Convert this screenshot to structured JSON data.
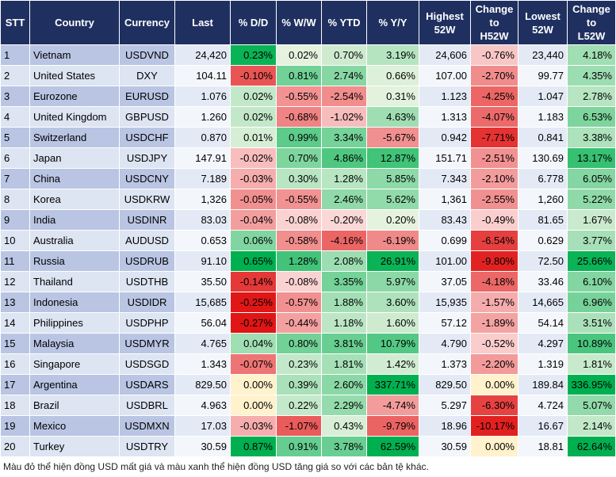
{
  "table": {
    "columns": [
      "STT",
      "Country",
      "Currency",
      "Last",
      "% D/D",
      "% W/W",
      "% YTD",
      "% Y/Y",
      "Highest\n52W",
      "Change\nto\nH52W",
      "Lowest\n52W",
      "Change\nto\nL52W"
    ],
    "rows": [
      [
        "1",
        "Vietnam",
        "USDVND",
        "24,420",
        "0.23%",
        "0.02%",
        "0.70%",
        "3.19%",
        "24,606",
        "-0.76%",
        "23,440",
        "4.18%"
      ],
      [
        "2",
        "United States",
        "DXY",
        "104.11",
        "-0.10%",
        "0.81%",
        "2.74%",
        "0.66%",
        "107.00",
        "-2.70%",
        "99.77",
        "4.35%"
      ],
      [
        "3",
        "Eurozone",
        "EURUSD",
        "1.076",
        "0.02%",
        "-0.55%",
        "-2.54%",
        "0.31%",
        "1.123",
        "-4.25%",
        "1.047",
        "2.78%"
      ],
      [
        "4",
        "United Kingdom",
        "GBPUSD",
        "1.260",
        "0.02%",
        "-0.68%",
        "-1.02%",
        "4.63%",
        "1.313",
        "-4.07%",
        "1.183",
        "6.53%"
      ],
      [
        "5",
        "Switzerland",
        "USDCHF",
        "0.870",
        "0.01%",
        "0.99%",
        "3.34%",
        "-5.67%",
        "0.942",
        "-7.71%",
        "0.841",
        "3.38%"
      ],
      [
        "6",
        "Japan",
        "USDJPY",
        "147.91",
        "-0.02%",
        "0.70%",
        "4.86%",
        "12.87%",
        "151.71",
        "-2.51%",
        "130.69",
        "13.17%"
      ],
      [
        "7",
        "China",
        "USDCNY",
        "7.189",
        "-0.03%",
        "0.30%",
        "1.28%",
        "5.85%",
        "7.343",
        "-2.10%",
        "6.778",
        "6.05%"
      ],
      [
        "8",
        "Korea",
        "USDKRW",
        "1,326",
        "-0.05%",
        "-0.55%",
        "2.46%",
        "5.62%",
        "1,361",
        "-2.55%",
        "1,260",
        "5.22%"
      ],
      [
        "9",
        "India",
        "USDINR",
        "83.03",
        "-0.04%",
        "-0.08%",
        "-0.20%",
        "0.20%",
        "83.43",
        "-0.49%",
        "81.65",
        "1.67%"
      ],
      [
        "10",
        "Australia",
        "AUDUSD",
        "0.653",
        "0.06%",
        "-0.58%",
        "-4.16%",
        "-6.19%",
        "0.699",
        "-6.54%",
        "0.629",
        "3.77%"
      ],
      [
        "11",
        "Russia",
        "USDRUB",
        "91.10",
        "0.65%",
        "1.28%",
        "2.08%",
        "26.91%",
        "101.00",
        "-9.80%",
        "72.50",
        "25.66%"
      ],
      [
        "12",
        "Thailand",
        "USDTHB",
        "35.50",
        "-0.14%",
        "-0.08%",
        "3.35%",
        "5.97%",
        "37.05",
        "-4.18%",
        "33.46",
        "6.10%"
      ],
      [
        "13",
        "Indonesia",
        "USDIDR",
        "15,685",
        "-0.25%",
        "-0.57%",
        "1.88%",
        "3.60%",
        "15,935",
        "-1.57%",
        "14,665",
        "6.96%"
      ],
      [
        "14",
        "Philippines",
        "USDPHP",
        "56.04",
        "-0.27%",
        "-0.44%",
        "1.18%",
        "1.60%",
        "57.12",
        "-1.89%",
        "54.14",
        "3.51%"
      ],
      [
        "15",
        "Malaysia",
        "USDMYR",
        "4.765",
        "0.04%",
        "0.80%",
        "3.81%",
        "10.79%",
        "4.790",
        "-0.52%",
        "4.297",
        "10.89%"
      ],
      [
        "16",
        "Singapore",
        "USDSGD",
        "1.343",
        "-0.07%",
        "0.23%",
        "1.81%",
        "1.42%",
        "1.373",
        "-2.20%",
        "1.319",
        "1.81%"
      ],
      [
        "17",
        "Argentina",
        "USDARS",
        "829.50",
        "0.00%",
        "0.39%",
        "2.60%",
        "337.71%",
        "829.50",
        "0.00%",
        "189.84",
        "336.95%"
      ],
      [
        "18",
        "Brazil",
        "USDBRL",
        "4.963",
        "0.00%",
        "0.22%",
        "2.29%",
        "-4.74%",
        "5.297",
        "-6.30%",
        "4.724",
        "5.07%"
      ],
      [
        "19",
        "Mexico",
        "USDMXN",
        "17.03",
        "-0.03%",
        "-1.07%",
        "0.43%",
        "-9.79%",
        "18.96",
        "-10.17%",
        "16.67",
        "2.14%"
      ],
      [
        "20",
        "Turkey",
        "USDTRY",
        "30.59",
        "0.87%",
        "0.91%",
        "3.78%",
        "62.59%",
        "30.59",
        "0.00%",
        "18.81",
        "62.64%"
      ]
    ]
  },
  "footnote": "Màu đỏ thể hiện đồng USD mất giá và màu xanh thể hiện đồng USD tăng giá so với các bản tệ khác."
}
